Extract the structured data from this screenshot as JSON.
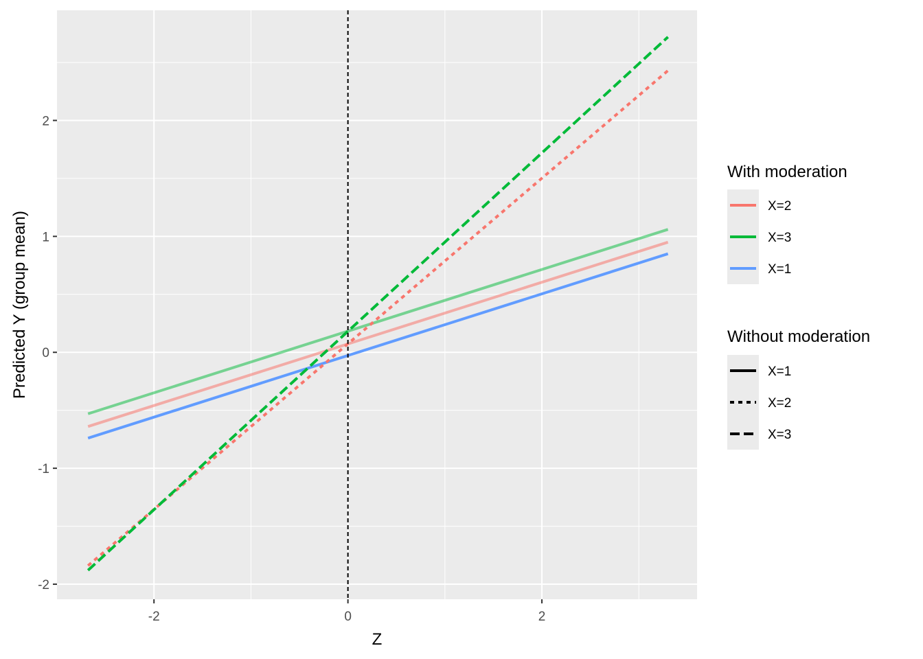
{
  "chart_data": {
    "type": "line",
    "title": "",
    "xlabel": "Z",
    "ylabel": "Predicted Y (group mean)",
    "xlim": [
      -3.0,
      3.6
    ],
    "ylim": [
      -2.13,
      2.95
    ],
    "x_ticks": [
      -2,
      0,
      2
    ],
    "y_ticks": [
      -2,
      -1,
      0,
      1,
      2
    ],
    "x_tick_labels": [
      "-2",
      "0",
      "2"
    ],
    "y_tick_labels": [
      "-2",
      "-1",
      "0",
      "1",
      "2"
    ],
    "grid": true,
    "reference_line": {
      "x": 0,
      "style": "dashed",
      "color": "#000000"
    },
    "series": [
      {
        "name": "X=1",
        "group": "Without moderation",
        "linetype": "solid",
        "color": "#619CFF",
        "alpha": 1.0,
        "x": [
          -2.68,
          3.3
        ],
        "y": [
          -0.74,
          0.85
        ]
      },
      {
        "name": "X=2",
        "group": "Without moderation",
        "linetype": "solid",
        "color": "#F8766D",
        "alpha": 0.55,
        "x": [
          -2.68,
          3.3
        ],
        "y": [
          -0.64,
          0.95
        ]
      },
      {
        "name": "X=3",
        "group": "Without moderation",
        "linetype": "solid",
        "color": "#00BA38",
        "alpha": 0.5,
        "x": [
          -2.68,
          3.3
        ],
        "y": [
          -0.53,
          1.06
        ]
      },
      {
        "name": "X=2",
        "group": "With moderation",
        "linetype": "dotted",
        "color": "#F8766D",
        "alpha": 1.0,
        "x": [
          -2.68,
          3.3
        ],
        "y": [
          -1.84,
          2.43
        ]
      },
      {
        "name": "X=3",
        "group": "With moderation",
        "linetype": "dashed",
        "color": "#00BA38",
        "alpha": 1.0,
        "x": [
          -2.68,
          3.3
        ],
        "y": [
          -1.88,
          2.72
        ]
      }
    ],
    "legends": [
      {
        "title": "With moderation",
        "position": "right",
        "entries": [
          {
            "label": "X=2",
            "color": "#F8766D",
            "linetype": "solid"
          },
          {
            "label": "X=3",
            "color": "#00BA38",
            "linetype": "solid"
          },
          {
            "label": "X=1",
            "color": "#619CFF",
            "linetype": "solid"
          }
        ]
      },
      {
        "title": "Without moderation",
        "position": "right",
        "entries": [
          {
            "label": "X=1",
            "color": "#000000",
            "linetype": "solid"
          },
          {
            "label": "X=2",
            "color": "#000000",
            "linetype": "dotted"
          },
          {
            "label": "X=3",
            "color": "#000000",
            "linetype": "dashed"
          }
        ]
      }
    ]
  }
}
